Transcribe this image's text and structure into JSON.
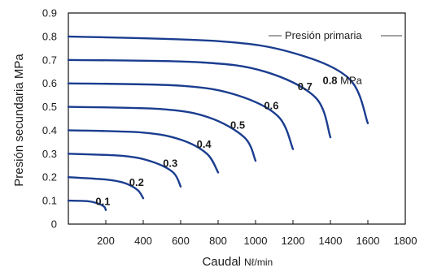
{
  "chart_data": {
    "type": "line",
    "xlabel": "Caudal",
    "xlabel_unit": "Nℓ/min",
    "ylabel": "Presión secundaria MPa",
    "xlim": [
      0,
      1800
    ],
    "ylim": [
      0,
      0.9
    ],
    "x_tick_labels": [
      "200",
      "400",
      "600",
      "800",
      "1000",
      "1200",
      "1400",
      "1600",
      "1800"
    ],
    "y_tick_labels": [
      "0",
      "0.1",
      "0.2",
      "0.3",
      "0.4",
      "0.5",
      "0.6",
      "0.7",
      "0.8",
      "0.9"
    ],
    "grid": false,
    "annotation": "Presión primaria",
    "series": [
      {
        "name": "0.1",
        "x": [
          0,
          100,
          150,
          190,
          200
        ],
        "y": [
          0.1,
          0.098,
          0.09,
          0.075,
          0.06
        ]
      },
      {
        "name": "0.2",
        "x": [
          0,
          200,
          300,
          370,
          400
        ],
        "y": [
          0.2,
          0.19,
          0.175,
          0.145,
          0.11
        ]
      },
      {
        "name": "0.3",
        "x": [
          0,
          300,
          450,
          560,
          600
        ],
        "y": [
          0.3,
          0.29,
          0.265,
          0.22,
          0.16
        ]
      },
      {
        "name": "0.4",
        "x": [
          0,
          400,
          600,
          740,
          800
        ],
        "y": [
          0.4,
          0.39,
          0.36,
          0.3,
          0.22
        ]
      },
      {
        "name": "0.5",
        "x": [
          0,
          500,
          750,
          940,
          1000
        ],
        "y": [
          0.5,
          0.49,
          0.455,
          0.37,
          0.27
        ]
      },
      {
        "name": "0.6",
        "x": [
          0,
          600,
          900,
          1120,
          1200
        ],
        "y": [
          0.6,
          0.59,
          0.55,
          0.46,
          0.32
        ]
      },
      {
        "name": "0.7",
        "x": [
          0,
          700,
          1050,
          1320,
          1400
        ],
        "y": [
          0.7,
          0.69,
          0.65,
          0.54,
          0.37
        ]
      },
      {
        "name": "0.8 MPa",
        "x": [
          0,
          800,
          1200,
          1500,
          1600
        ],
        "y": [
          0.8,
          0.78,
          0.73,
          0.62,
          0.43
        ]
      }
    ]
  }
}
